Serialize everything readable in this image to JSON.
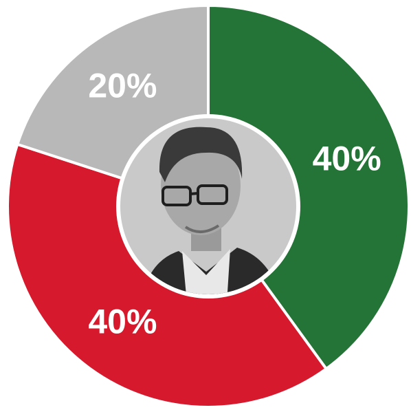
{
  "chart_data": {
    "type": "donut",
    "values": [
      40,
      40,
      20
    ],
    "value_labels": [
      "40%",
      "40%",
      "20%"
    ],
    "colors": [
      "#237436",
      "#d7192d",
      "#b8b8b8"
    ]
  }
}
